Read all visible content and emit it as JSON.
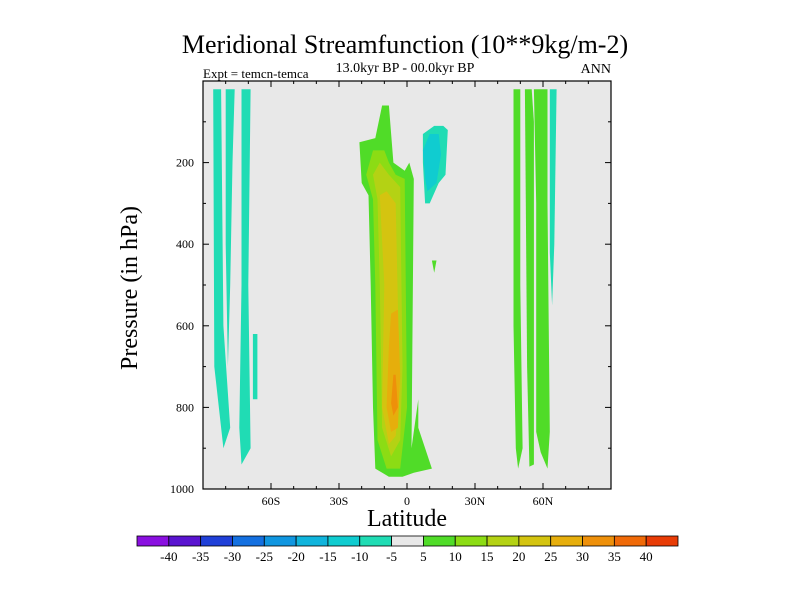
{
  "chart_data": {
    "type": "heatmap",
    "title": "Meridional Streamfunction (10**9kg/m-2)",
    "subtitle": "13.0kyr BP - 00.0kyr BP",
    "left_label": "Expt = temcn-temca",
    "right_label": "ANN",
    "xlabel": "Latitude",
    "ylabel": "Pressure (in hPa)",
    "xlim": [
      -90,
      90
    ],
    "ylim": [
      0,
      1000
    ],
    "y_reversed": true,
    "x_ticks": [
      {
        "value": -60,
        "label": "60S"
      },
      {
        "value": -30,
        "label": "30S"
      },
      {
        "value": 0,
        "label": "0"
      },
      {
        "value": 30,
        "label": "30N"
      },
      {
        "value": 60,
        "label": "60N"
      }
    ],
    "y_ticks": [
      {
        "value": 200,
        "label": "200"
      },
      {
        "value": 400,
        "label": "400"
      },
      {
        "value": 600,
        "label": "600"
      },
      {
        "value": 800,
        "label": "800"
      },
      {
        "value": 1000,
        "label": "1000"
      }
    ],
    "background_color": "#e8e8e8",
    "levels": [
      -40,
      -35,
      -30,
      -25,
      -20,
      -15,
      -10,
      -5,
      5,
      10,
      15,
      20,
      25,
      30,
      35,
      40
    ],
    "level_labels": [
      "-40",
      "-35",
      "-30",
      "-25",
      "-20",
      "-15",
      "-10",
      "-5",
      "5",
      "10",
      "15",
      "20",
      "25",
      "30",
      "35",
      "40"
    ],
    "colors": [
      "#8a10e0",
      "#5a14d0",
      "#2040d8",
      "#1470e0",
      "#1096e0",
      "#10b4dc",
      "#10ccd0",
      "#20dcb4",
      "#e8e8e8",
      "#50dc28",
      "#8cdc14",
      "#b4d214",
      "#d4c410",
      "#e6ae0c",
      "#ee900a",
      "#f06a08",
      "#e83c06"
    ],
    "regions": [
      {
        "name": "sh-negative-band-a",
        "value": -7,
        "points": [
          [
            -85.5,
            20
          ],
          [
            -82,
            20
          ],
          [
            -81,
            600
          ],
          [
            -78,
            850
          ],
          [
            -81,
            900
          ],
          [
            -85,
            700
          ]
        ]
      },
      {
        "name": "sh-negative-band-b",
        "value": -7,
        "points": [
          [
            -80,
            20
          ],
          [
            -76,
            20
          ],
          [
            -77,
            200
          ],
          [
            -78,
            500
          ],
          [
            -79,
            700
          ],
          [
            -80,
            400
          ]
        ]
      },
      {
        "name": "sh-negative-band-c",
        "value": -7,
        "points": [
          [
            -73,
            20
          ],
          [
            -69,
            20
          ],
          [
            -70,
            500
          ],
          [
            -69,
            900
          ],
          [
            -73,
            940
          ],
          [
            -74,
            850
          ],
          [
            -73,
            500
          ]
        ]
      },
      {
        "name": "sh-negative-band-d",
        "value": -7,
        "points": [
          [
            -68,
            620
          ],
          [
            -66,
            620
          ],
          [
            -66,
            780
          ],
          [
            -68,
            780
          ]
        ]
      },
      {
        "name": "tropical-positive-outer",
        "value": 7,
        "points": [
          [
            -20,
            250
          ],
          [
            -21,
            150
          ],
          [
            -14,
            140
          ],
          [
            -11,
            60
          ],
          [
            -8,
            60
          ],
          [
            -6,
            200
          ],
          [
            -1,
            220
          ],
          [
            1,
            200
          ],
          [
            3,
            240
          ],
          [
            2,
            900
          ],
          [
            5,
            780
          ],
          [
            5,
            850
          ],
          [
            11,
            950
          ],
          [
            3,
            960
          ],
          [
            -2,
            970
          ],
          [
            -8,
            970
          ],
          [
            -14,
            950
          ],
          [
            -15,
            800
          ],
          [
            -16,
            500
          ],
          [
            -17,
            280
          ]
        ]
      },
      {
        "name": "tropical-positive-10",
        "value": 12,
        "points": [
          [
            -18,
            230
          ],
          [
            -15,
            170
          ],
          [
            -10,
            170
          ],
          [
            -8,
            200
          ],
          [
            -5,
            230
          ],
          [
            -1,
            240
          ],
          [
            0,
            800
          ],
          [
            -3,
            950
          ],
          [
            -9,
            950
          ],
          [
            -13,
            880
          ],
          [
            -14,
            500
          ],
          [
            -15,
            290
          ]
        ]
      },
      {
        "name": "tropical-positive-15",
        "value": 17,
        "points": [
          [
            -15,
            230
          ],
          [
            -12,
            200
          ],
          [
            -8,
            230
          ],
          [
            -3,
            260
          ],
          [
            -2,
            700
          ],
          [
            -3,
            880
          ],
          [
            -7,
            920
          ],
          [
            -11,
            850
          ],
          [
            -12,
            500
          ],
          [
            -13,
            290
          ]
        ]
      },
      {
        "name": "tropical-positive-20",
        "value": 22,
        "points": [
          [
            -12,
            280
          ],
          [
            -9,
            270
          ],
          [
            -5,
            300
          ],
          [
            -4,
            550
          ],
          [
            -3,
            750
          ],
          [
            -5,
            870
          ],
          [
            -8,
            890
          ],
          [
            -11,
            800
          ],
          [
            -10,
            500
          ]
        ]
      },
      {
        "name": "tropical-positive-25",
        "value": 27,
        "points": [
          [
            -7,
            570
          ],
          [
            -4,
            560
          ],
          [
            -3,
            720
          ],
          [
            -4,
            850
          ],
          [
            -7,
            860
          ],
          [
            -9,
            800
          ],
          [
            -8,
            650
          ]
        ]
      },
      {
        "name": "tropical-positive-30",
        "value": 32,
        "points": [
          [
            -6,
            720
          ],
          [
            -5,
            720
          ],
          [
            -4,
            800
          ],
          [
            -6,
            820
          ],
          [
            -7,
            790
          ]
        ]
      },
      {
        "name": "tropical-negative",
        "value": -7,
        "points": [
          [
            7,
            130
          ],
          [
            12,
            110
          ],
          [
            16,
            110
          ],
          [
            18,
            120
          ],
          [
            17,
            230
          ],
          [
            14,
            250
          ],
          [
            10,
            300
          ],
          [
            8,
            300
          ],
          [
            7,
            200
          ]
        ]
      },
      {
        "name": "tropical-negative-10",
        "value": -12,
        "points": [
          [
            7,
            170
          ],
          [
            10,
            130
          ],
          [
            14,
            130
          ],
          [
            15,
            180
          ],
          [
            13,
            250
          ],
          [
            11,
            260
          ],
          [
            9,
            270
          ],
          [
            8,
            240
          ]
        ]
      },
      {
        "name": "tropical-small-positive",
        "value": 7,
        "points": [
          [
            11,
            440
          ],
          [
            13,
            440
          ],
          [
            12,
            470
          ]
        ]
      },
      {
        "name": "nh-positive-band-a",
        "value": 7,
        "points": [
          [
            47,
            20
          ],
          [
            50,
            20
          ],
          [
            50,
            500
          ],
          [
            51,
            900
          ],
          [
            49,
            950
          ],
          [
            48,
            900
          ],
          [
            47,
            600
          ]
        ]
      },
      {
        "name": "nh-positive-band-b",
        "value": 7,
        "points": [
          [
            52,
            20
          ],
          [
            55,
            20
          ],
          [
            56,
            100
          ],
          [
            56,
            400
          ],
          [
            56,
            940
          ],
          [
            54,
            945
          ],
          [
            53,
            700
          ]
        ]
      },
      {
        "name": "nh-positive-band-c",
        "value": 7,
        "points": [
          [
            56,
            20
          ],
          [
            62,
            20
          ],
          [
            62,
            300
          ],
          [
            63,
            860
          ],
          [
            62,
            950
          ],
          [
            59,
            910
          ],
          [
            57,
            860
          ],
          [
            57,
            300
          ]
        ]
      },
      {
        "name": "nh-negative-band",
        "value": -7,
        "points": [
          [
            63,
            20
          ],
          [
            66,
            20
          ],
          [
            65,
            400
          ],
          [
            64,
            550
          ],
          [
            63,
            420
          ]
        ]
      }
    ]
  }
}
